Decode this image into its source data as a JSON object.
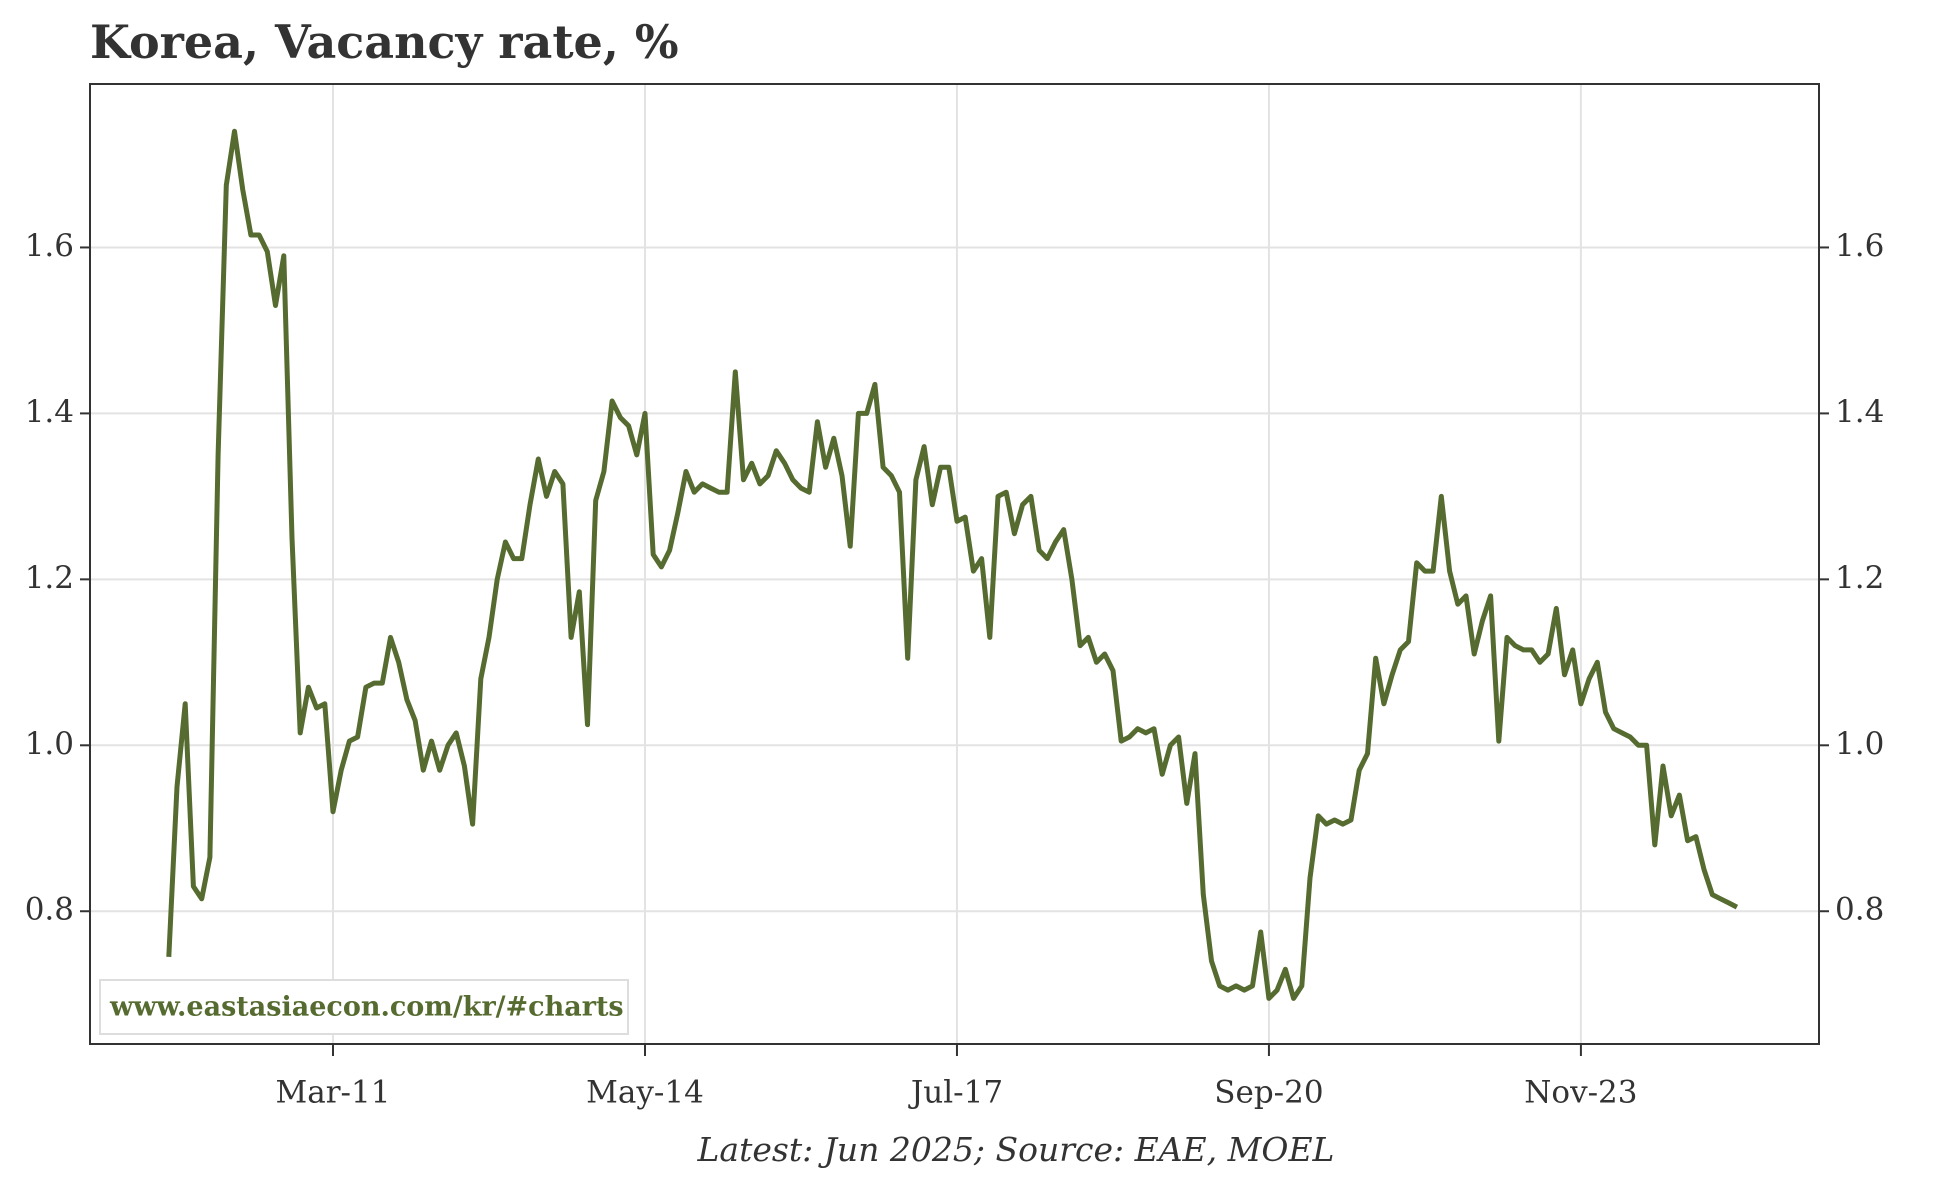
{
  "chart_data": {
    "type": "line",
    "title": "Korea, Vacancy rate, %",
    "note": "Latest: Jun 2025; Source: EAE, MOEL",
    "watermark": "www.eastasiaecon.com/kr/#charts",
    "xlim": [
      -9.6,
      201
    ],
    "xticks": [
      {
        "value": 20,
        "label": "Mar-11"
      },
      {
        "value": 58,
        "label": "May-14"
      },
      {
        "value": 96,
        "label": "Jul-17"
      },
      {
        "value": 134,
        "label": "Sep-20"
      },
      {
        "value": 172,
        "label": "Nov-23"
      }
    ],
    "ylim": [
      0.64,
      1.797
    ],
    "yticks": [
      0.8,
      {
        "value": 1,
        "label": "1.0"
      },
      1.2,
      1.4,
      1.6
    ],
    "grid": true,
    "series": [
      {
        "color": "#566b30",
        "values": [
          0.745,
          0.95,
          1.05,
          0.83,
          0.815,
          0.865,
          1.35,
          1.675,
          1.74,
          1.67,
          1.615,
          1.615,
          1.595,
          1.53,
          1.59,
          1.25,
          1.015,
          1.07,
          1.045,
          1.05,
          0.92,
          0.97,
          1.005,
          1.01,
          1.07,
          1.075,
          1.075,
          1.13,
          1.1,
          1.055,
          1.03,
          0.97,
          1.005,
          0.97,
          1.0,
          1.015,
          0.975,
          0.905,
          1.08,
          1.13,
          1.2,
          1.245,
          1.225,
          1.225,
          1.29,
          1.345,
          1.3,
          1.33,
          1.315,
          1.13,
          1.185,
          1.025,
          1.295,
          1.33,
          1.415,
          1.395,
          1.385,
          1.35,
          1.4,
          1.23,
          1.215,
          1.235,
          1.28,
          1.33,
          1.305,
          1.315,
          1.31,
          1.305,
          1.305,
          1.45,
          1.32,
          1.34,
          1.315,
          1.325,
          1.355,
          1.34,
          1.32,
          1.31,
          1.305,
          1.39,
          1.335,
          1.37,
          1.325,
          1.24,
          1.4,
          1.4,
          1.435,
          1.335,
          1.325,
          1.305,
          1.105,
          1.32,
          1.36,
          1.29,
          1.335,
          1.335,
          1.27,
          1.275,
          1.21,
          1.225,
          1.13,
          1.3,
          1.305,
          1.255,
          1.29,
          1.3,
          1.235,
          1.225,
          1.245,
          1.26,
          1.2,
          1.12,
          1.13,
          1.1,
          1.11,
          1.09,
          1.005,
          1.01,
          1.02,
          1.015,
          1.02,
          0.965,
          1.0,
          1.01,
          0.93,
          0.99,
          0.82,
          0.74,
          0.71,
          0.705,
          0.71,
          0.705,
          0.71,
          0.775,
          0.695,
          0.705,
          0.73,
          0.695,
          0.71,
          0.84,
          0.915,
          0.905,
          0.91,
          0.905,
          0.91,
          0.97,
          0.99,
          1.105,
          1.05,
          1.085,
          1.115,
          1.125,
          1.22,
          1.21,
          1.21,
          1.3,
          1.21,
          1.17,
          1.18,
          1.11,
          1.15,
          1.18,
          1.005,
          1.13,
          1.12,
          1.115,
          1.115,
          1.1,
          1.11,
          1.165,
          1.085,
          1.115,
          1.05,
          1.08,
          1.1,
          1.04,
          1.02,
          1.015,
          1.01,
          1.0,
          1.0,
          0.88,
          0.975,
          0.915,
          0.94,
          0.885,
          0.89,
          0.85,
          0.82,
          0.815,
          0.81,
          0.805
        ]
      }
    ]
  }
}
